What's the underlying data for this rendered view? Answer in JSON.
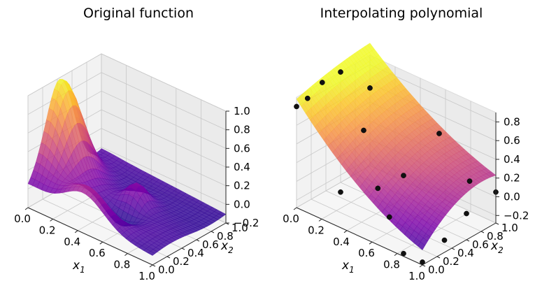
{
  "chart_data": [
    {
      "type": "surface3d",
      "title": "Original function",
      "xlabel": "x",
      "xlabel_sub": "1",
      "ylabel": "x",
      "ylabel_sub": "2",
      "xlim": [
        0,
        1
      ],
      "ylim": [
        0,
        1
      ],
      "zlim": [
        -0.2,
        1.0
      ],
      "xticks": [
        "0.0",
        "0.2",
        "0.4",
        "0.6",
        "0.8",
        "1.0"
      ],
      "yticks": [
        "0.0",
        "0.2",
        "0.4",
        "0.6",
        "0.8",
        "1.0"
      ],
      "zticks": [
        "−0.2",
        "0.0",
        "0.2",
        "0.4",
        "0.6",
        "0.8",
        "1.0"
      ],
      "colormap": "plasma",
      "surface": "bumpy surface with a peak of about 1.0 near x1=0, x2=0.35, decaying toward x1=1",
      "points": []
    },
    {
      "type": "surface3d",
      "title": "Interpolating polynomial",
      "xlabel": "x",
      "xlabel_sub": "1",
      "ylabel": "x",
      "ylabel_sub": "2",
      "xlim": [
        0,
        1
      ],
      "ylim": [
        0,
        1
      ],
      "zlim": [
        -0.28,
        0.9
      ],
      "xticks": [
        "0.0",
        "0.2",
        "0.4",
        "0.6",
        "0.8",
        "1.0"
      ],
      "yticks": [
        "0.0",
        "0.2",
        "0.4",
        "0.6",
        "0.8",
        "1.0"
      ],
      "zticks": [
        "−0.2",
        "0.0",
        "0.2",
        "0.4",
        "0.6",
        "0.8"
      ],
      "colormap": "plasma",
      "surface": "smooth polynomial surface, max near x1=0, x2=0.4",
      "points": [
        {
          "x1": 0.0,
          "x2": 0.0,
          "z": 0.8
        },
        {
          "x1": 0.0,
          "x2": 0.35,
          "z": 0.9
        },
        {
          "x1": 0.0,
          "x2": 0.6,
          "z": 0.9
        },
        {
          "x1": 0.0,
          "x2": 1.0,
          "z": 0.55
        },
        {
          "x1": 0.0,
          "x2": 0.15,
          "z": 0.82
        },
        {
          "x1": 0.35,
          "x2": 0.0,
          "z": 0.1
        },
        {
          "x1": 0.5,
          "x2": 0.25,
          "z": 0.12
        },
        {
          "x1": 0.5,
          "x2": 0.6,
          "z": 0.1
        },
        {
          "x1": 0.55,
          "x2": 1.0,
          "z": 0.4
        },
        {
          "x1": 0.85,
          "x2": 0.0,
          "z": -0.25
        },
        {
          "x1": 1.0,
          "x2": 0.0,
          "z": -0.25
        },
        {
          "x1": 1.0,
          "x2": 0.3,
          "z": -0.15
        },
        {
          "x1": 1.0,
          "x2": 0.6,
          "z": 0.0
        },
        {
          "x1": 1.0,
          "x2": 1.0,
          "z": 0.05
        },
        {
          "x1": 0.85,
          "x2": 0.9,
          "z": 0.12
        },
        {
          "x1": 0.65,
          "x2": 0.15,
          "z": -0.05
        },
        {
          "x1": 0.3,
          "x2": 0.4,
          "z": 0.55
        }
      ]
    }
  ]
}
